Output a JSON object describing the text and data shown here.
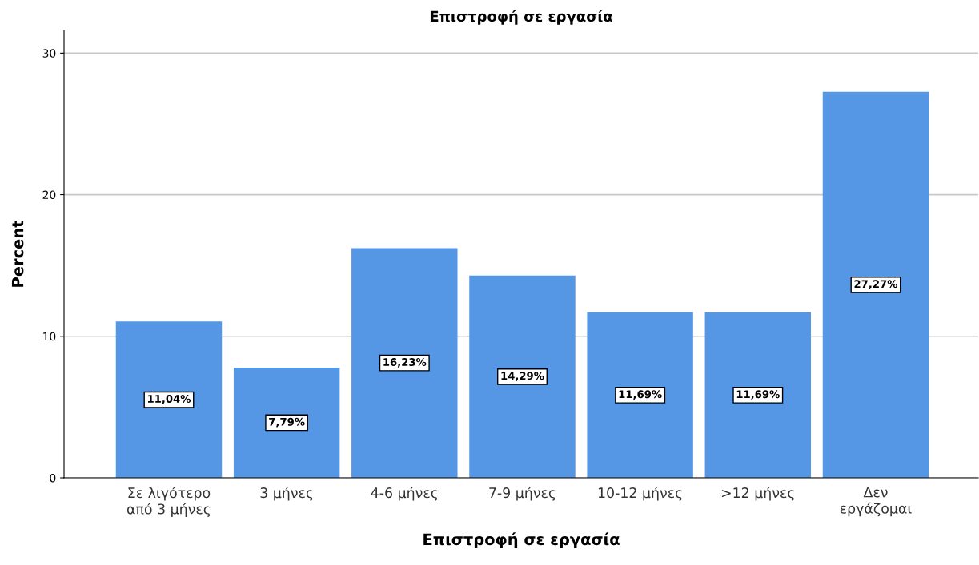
{
  "chart_data": {
    "type": "bar",
    "title": "Επιστροφή σε εργασία",
    "xlabel": "Επιστροφή σε εργασία",
    "ylabel": "Percent",
    "categories": [
      "Σε λιγότερο\nαπό 3 μήνες",
      "3 μήνες",
      "4-6 μήνες",
      "7-9 μήνες",
      "10-12 μήνες",
      ">12 μήνες",
      "Δεν\nεργάζομαι"
    ],
    "values": [
      11.04,
      7.79,
      16.23,
      14.29,
      11.69,
      11.69,
      27.27
    ],
    "value_labels": [
      "11,04%",
      "7,79%",
      "16,23%",
      "14,29%",
      "11,69%",
      "11,69%",
      "27,27%"
    ],
    "color": "#5596e5",
    "ylim": [
      0,
      31.6
    ],
    "yticks": [
      0,
      10,
      20,
      30
    ],
    "grid": "y"
  }
}
